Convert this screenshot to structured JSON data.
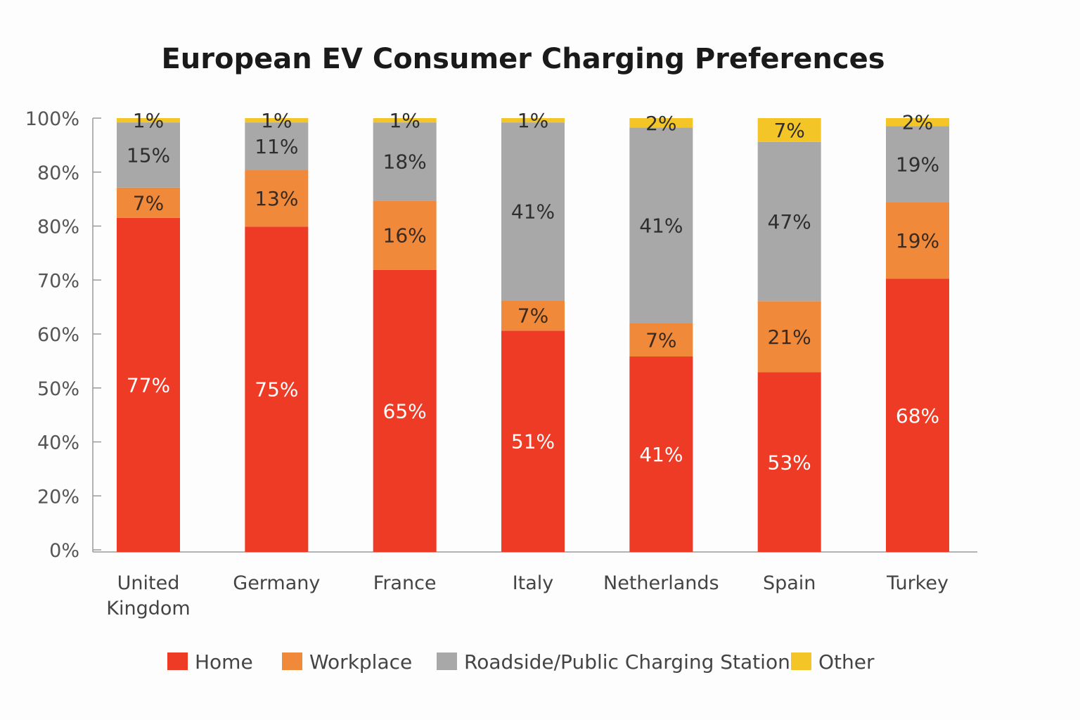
{
  "chart_data": {
    "type": "bar",
    "stacked": true,
    "title": "European EV Consumer Charging Preferences",
    "xlabel": "",
    "ylabel": "",
    "ytick_labels": [
      "0%",
      "20%",
      "40%",
      "50%",
      "60%",
      "70%",
      "80%",
      "80%",
      "100%"
    ],
    "grid": false,
    "legend_position": "bottom",
    "categories": [
      "United Kingdom",
      "Germany",
      "France",
      "Italy",
      "Netherlands",
      "Spain",
      "Turkey"
    ],
    "category_lines": [
      [
        "United",
        "Kingdom"
      ],
      [
        "Germany"
      ],
      [
        "France"
      ],
      [
        "Italy"
      ],
      [
        "Netherlands"
      ],
      [
        "Spain"
      ],
      [
        "Turkey"
      ]
    ],
    "series": [
      {
        "name": "Home",
        "color": "#ee3b26",
        "label_color": "#ffffff",
        "values": [
          77,
          75,
          65,
          51,
          41,
          53,
          68
        ]
      },
      {
        "name": "Workplace",
        "color": "#f0893a",
        "label_color": "#3a2a20",
        "values": [
          7,
          13,
          16,
          7,
          7,
          21,
          19
        ]
      },
      {
        "name": "Roadside/Public Charging Station",
        "color": "#a8a8a8",
        "label_color": "#2e2e2e",
        "values": [
          15,
          11,
          18,
          41,
          41,
          47,
          19
        ]
      },
      {
        "name": "Other",
        "color": "#f3c526",
        "label_color": "#2e2e2e",
        "values": [
          1,
          1,
          1,
          1,
          2,
          7,
          2
        ]
      }
    ],
    "value_suffix": "%"
  }
}
